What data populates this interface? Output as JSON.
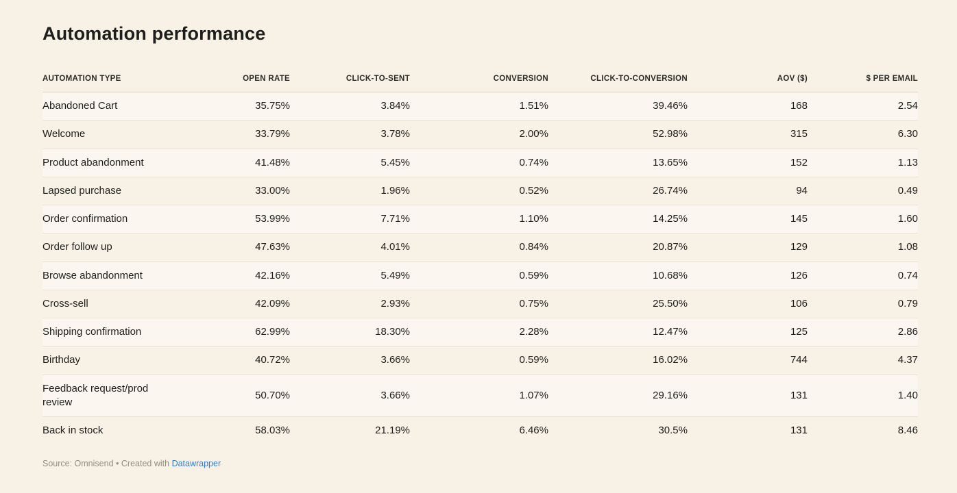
{
  "title": "Automation performance",
  "chart_data": {
    "type": "table",
    "title": "Automation performance",
    "columns": [
      {
        "label": "AUTOMATION TYPE",
        "align": "left"
      },
      {
        "label": "OPEN RATE",
        "align": "right"
      },
      {
        "label": "CLICK-TO-SENT",
        "align": "right"
      },
      {
        "label": "CONVERSION",
        "align": "right"
      },
      {
        "label": "CLICK-TO-CONVERSION",
        "align": "right"
      },
      {
        "label": "AOV ($)",
        "align": "right"
      },
      {
        "label": "$ PER EMAIL",
        "align": "right"
      }
    ],
    "rows": [
      [
        "Abandoned Cart",
        "35.75%",
        "3.84%",
        "1.51%",
        "39.46%",
        "168",
        "2.54"
      ],
      [
        "Welcome",
        "33.79%",
        "3.78%",
        "2.00%",
        "52.98%",
        "315",
        "6.30"
      ],
      [
        "Product abandonment",
        "41.48%",
        "5.45%",
        "0.74%",
        "13.65%",
        "152",
        "1.13"
      ],
      [
        "Lapsed purchase",
        "33.00%",
        "1.96%",
        "0.52%",
        "26.74%",
        "94",
        "0.49"
      ],
      [
        "Order confirmation",
        "53.99%",
        "7.71%",
        "1.10%",
        "14.25%",
        "145",
        "1.60"
      ],
      [
        "Order follow up",
        "47.63%",
        "4.01%",
        "0.84%",
        "20.87%",
        "129",
        "1.08"
      ],
      [
        "Browse abandonment",
        "42.16%",
        "5.49%",
        "0.59%",
        "10.68%",
        "126",
        "0.74"
      ],
      [
        "Cross-sell",
        "42.09%",
        "2.93%",
        "0.75%",
        "25.50%",
        "106",
        "0.79"
      ],
      [
        "Shipping confirmation",
        "62.99%",
        "18.30%",
        "2.28%",
        "12.47%",
        "125",
        "2.86"
      ],
      [
        "Birthday",
        "40.72%",
        "3.66%",
        "0.59%",
        "16.02%",
        "744",
        "4.37"
      ],
      [
        "Feedback request/prod review",
        "50.70%",
        "3.66%",
        "1.07%",
        "29.16%",
        "131",
        "1.40"
      ],
      [
        "Back in stock",
        "58.03%",
        "21.19%",
        "6.46%",
        "30.5%",
        "131",
        "8.46"
      ]
    ]
  },
  "footer": {
    "source_text": "Source: Omnisend",
    "separator": "•",
    "created_text": "Created with",
    "link_label": "Datawrapper"
  },
  "colors": {
    "background": "#f8f2e6",
    "text": "#1d1d1b",
    "header_border": "#d8d1c1",
    "row_divider": "#e9e2d3",
    "footer_text": "#908c82",
    "link": "#2e7cd6"
  }
}
